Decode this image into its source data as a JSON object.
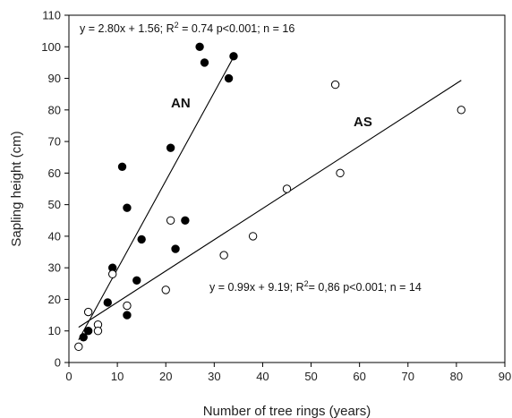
{
  "chart_data": {
    "type": "scatter",
    "xlabel": "Number of tree rings (years)",
    "ylabel": "Sapling height (cm)",
    "xlim": [
      0,
      90
    ],
    "ylim": [
      0,
      110
    ],
    "xticks": [
      0,
      10,
      20,
      30,
      40,
      50,
      60,
      70,
      80,
      90
    ],
    "yticks": [
      0,
      10,
      20,
      30,
      40,
      50,
      60,
      70,
      80,
      90,
      100,
      110
    ],
    "xtick_labels": [
      "0",
      "10",
      "20",
      "30",
      "40",
      "50",
      "60",
      "70",
      "80",
      "90"
    ],
    "ytick_labels": [
      "0",
      "10",
      "20",
      "30",
      "40",
      "50",
      "60",
      "70",
      "80",
      "90",
      "100",
      "110"
    ],
    "grid": false,
    "series": [
      {
        "name": "AN",
        "marker": "filled-circle",
        "color": "#000000",
        "points": [
          [
            3,
            8
          ],
          [
            4,
            10
          ],
          [
            8,
            19
          ],
          [
            9,
            30
          ],
          [
            11,
            62
          ],
          [
            12,
            49
          ],
          [
            12,
            15
          ],
          [
            14,
            26
          ],
          [
            15,
            39
          ],
          [
            21,
            68
          ],
          [
            22,
            36
          ],
          [
            24,
            45
          ],
          [
            27,
            100
          ],
          [
            28,
            95
          ],
          [
            33,
            90
          ],
          [
            34,
            97
          ]
        ],
        "fit": {
          "slope": 2.8,
          "intercept": 1.56,
          "x_range": [
            2,
            34
          ]
        },
        "annotation": {
          "eq": "y = 2.80x + 1.56; R",
          "sup": "2",
          "rest": " = 0.74 p<0.001; n = 16"
        }
      },
      {
        "name": "AS",
        "marker": "open-circle",
        "color": "#000000",
        "points": [
          [
            2,
            5
          ],
          [
            4,
            16
          ],
          [
            6,
            12
          ],
          [
            6,
            10
          ],
          [
            9,
            28
          ],
          [
            12,
            18
          ],
          [
            20,
            23
          ],
          [
            21,
            45
          ],
          [
            32,
            34
          ],
          [
            38,
            40
          ],
          [
            45,
            55
          ],
          [
            55,
            88
          ],
          [
            56,
            60
          ],
          [
            81,
            80
          ]
        ],
        "fit": {
          "slope": 0.99,
          "intercept": 9.19,
          "x_range": [
            2,
            81
          ]
        },
        "annotation": {
          "eq": "y = 0.99x + 9.19;  R",
          "sup": "2",
          "rest": "= 0,86  p<0.001; n = 14"
        }
      }
    ]
  }
}
